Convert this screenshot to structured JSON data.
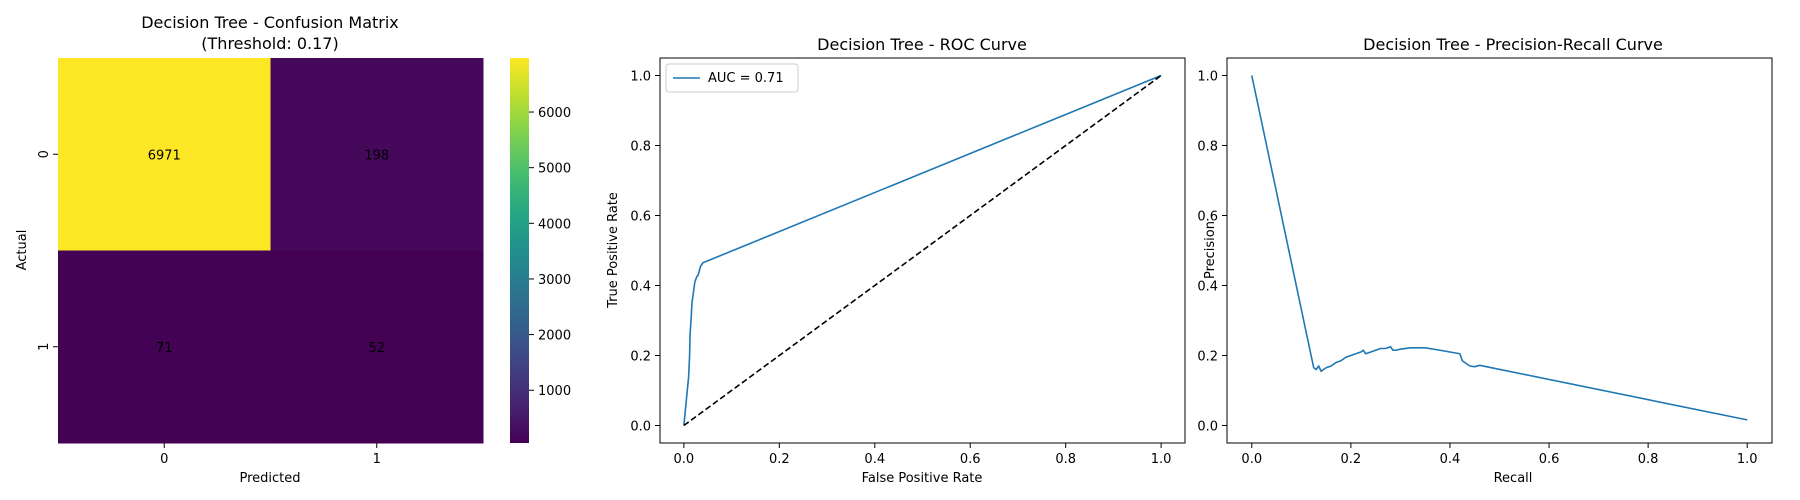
{
  "chart_data": [
    {
      "type": "heatmap",
      "title": "Decision Tree - Confusion Matrix",
      "subtitle": "(Threshold: 0.17)",
      "xlabel": "Predicted",
      "ylabel": "Actual",
      "x_categories": [
        "0",
        "1"
      ],
      "y_categories": [
        "0",
        "1"
      ],
      "matrix": [
        [
          6971,
          198
        ],
        [
          71,
          52
        ]
      ],
      "cell_labels": [
        [
          "6971",
          "198"
        ],
        [
          "71",
          "52"
        ]
      ],
      "colormap": "viridis",
      "colorbar": {
        "min": 52,
        "max": 6971,
        "ticks": [
          1000,
          2000,
          3000,
          4000,
          5000,
          6000
        ],
        "tick_labels": [
          "1000",
          "2000",
          "3000",
          "4000",
          "5000",
          "6000"
        ]
      }
    },
    {
      "type": "line",
      "title": "Decision Tree - ROC Curve",
      "xlabel": "False Positive Rate",
      "ylabel": "True Positive Rate",
      "xlim": [
        -0.05,
        1.05
      ],
      "ylim": [
        -0.05,
        1.05
      ],
      "xticks": [
        0.0,
        0.2,
        0.4,
        0.6,
        0.8,
        1.0
      ],
      "xtick_labels": [
        "0.0",
        "0.2",
        "0.4",
        "0.6",
        "0.8",
        "1.0"
      ],
      "yticks": [
        0.0,
        0.2,
        0.4,
        0.6,
        0.8,
        1.0
      ],
      "ytick_labels": [
        "0.0",
        "0.2",
        "0.4",
        "0.6",
        "0.8",
        "1.0"
      ],
      "grid": false,
      "legend": "top-left",
      "series": [
        {
          "name": "AUC = 0.71",
          "color": "#1f77b4",
          "style": "solid",
          "x": [
            0.0,
            0.005,
            0.01,
            0.012,
            0.013,
            0.015,
            0.017,
            0.02,
            0.023,
            0.027,
            0.03,
            0.035,
            0.04,
            1.0
          ],
          "y": [
            0.0,
            0.07,
            0.14,
            0.2,
            0.26,
            0.3,
            0.35,
            0.38,
            0.41,
            0.425,
            0.43,
            0.455,
            0.465,
            1.0
          ]
        },
        {
          "color": "#000000",
          "style": "dashed",
          "x": [
            0.0,
            1.0
          ],
          "y": [
            0.0,
            1.0
          ]
        }
      ]
    },
    {
      "type": "line",
      "title": "Decision Tree - Precision-Recall Curve",
      "xlabel": "Recall",
      "ylabel": "Precision",
      "xlim": [
        -0.05,
        1.05
      ],
      "ylim": [
        -0.05,
        1.05
      ],
      "xticks": [
        0.0,
        0.2,
        0.4,
        0.6,
        0.8,
        1.0
      ],
      "xtick_labels": [
        "0.0",
        "0.2",
        "0.4",
        "0.6",
        "0.8",
        "1.0"
      ],
      "yticks": [
        0.0,
        0.2,
        0.4,
        0.6,
        0.8,
        1.0
      ],
      "ytick_labels": [
        "0.0",
        "0.2",
        "0.4",
        "0.6",
        "0.8",
        "1.0"
      ],
      "grid": false,
      "series": [
        {
          "color": "#1f77b4",
          "style": "solid",
          "x": [
            0.0,
            0.125,
            0.13,
            0.135,
            0.14,
            0.15,
            0.16,
            0.17,
            0.18,
            0.19,
            0.2,
            0.21,
            0.22,
            0.225,
            0.23,
            0.24,
            0.25,
            0.26,
            0.27,
            0.28,
            0.285,
            0.29,
            0.3,
            0.32,
            0.35,
            0.38,
            0.4,
            0.42,
            0.425,
            0.43,
            0.44,
            0.45,
            0.46,
            1.0
          ],
          "y": [
            1.0,
            0.165,
            0.16,
            0.17,
            0.155,
            0.165,
            0.17,
            0.18,
            0.185,
            0.195,
            0.2,
            0.205,
            0.21,
            0.215,
            0.205,
            0.21,
            0.215,
            0.22,
            0.22,
            0.225,
            0.215,
            0.215,
            0.218,
            0.222,
            0.222,
            0.215,
            0.21,
            0.205,
            0.185,
            0.18,
            0.17,
            0.168,
            0.172,
            0.016
          ]
        }
      ]
    }
  ]
}
